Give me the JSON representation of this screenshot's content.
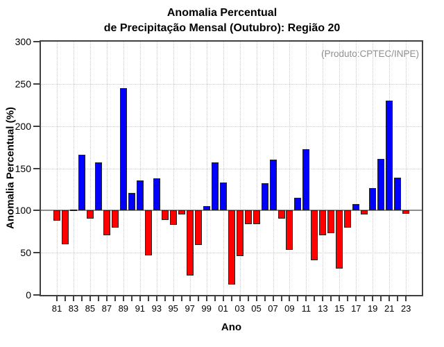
{
  "title": {
    "line1": "Anomalia Percentual",
    "line2": "de Precipitação Mensal (Outubro): Região 20"
  },
  "annotation": "(Produto:CPTEC/INPE)",
  "chart_data": {
    "type": "bar",
    "title": "Anomalia Percentual de Precipitação Mensal (Outubro): Região 20",
    "xlabel": "Ano",
    "ylabel": "Anomalia Percentual (%)",
    "ylim": [
      0,
      300
    ],
    "yticks": [
      0,
      50,
      100,
      150,
      200,
      250,
      300
    ],
    "baseline": 100,
    "grid": "dotted horizontal at each 50 and vertical at labeled years",
    "legend": "none",
    "categories": [
      "81",
      "82",
      "83",
      "84",
      "85",
      "86",
      "87",
      "88",
      "89",
      "90",
      "91",
      "92",
      "93",
      "94",
      "95",
      "96",
      "97",
      "98",
      "99",
      "00",
      "01",
      "02",
      "03",
      "04",
      "05",
      "06",
      "07",
      "08",
      "09",
      "10",
      "11",
      "12",
      "13",
      "14",
      "15",
      "16",
      "17",
      "18",
      "19",
      "20",
      "21",
      "22",
      "23"
    ],
    "x_tick_labels": [
      "81",
      "83",
      "85",
      "87",
      "89",
      "91",
      "93",
      "95",
      "97",
      "99",
      "01",
      "03",
      "05",
      "07",
      "09",
      "11",
      "13",
      "15",
      "17",
      "19",
      "21",
      "23"
    ],
    "values": [
      88,
      60,
      100,
      166,
      90,
      157,
      71,
      80,
      245,
      121,
      136,
      47,
      138,
      89,
      83,
      95,
      23,
      59,
      105,
      157,
      133,
      12,
      46,
      84,
      84,
      132,
      160,
      90,
      53,
      115,
      173,
      41,
      71,
      73,
      31,
      80,
      108,
      95,
      127,
      161,
      230,
      139,
      96
    ]
  },
  "colors": {
    "bar_above_baseline": "#0000ff",
    "bar_below_baseline": "#ff0000",
    "bar_border": "#222222",
    "baseline_line": "#8f8f8f",
    "plot_border": "#3f3f3f",
    "gridline": "#c9c9c9",
    "annotation_text": "#8f8f8f",
    "text": "#000000"
  }
}
